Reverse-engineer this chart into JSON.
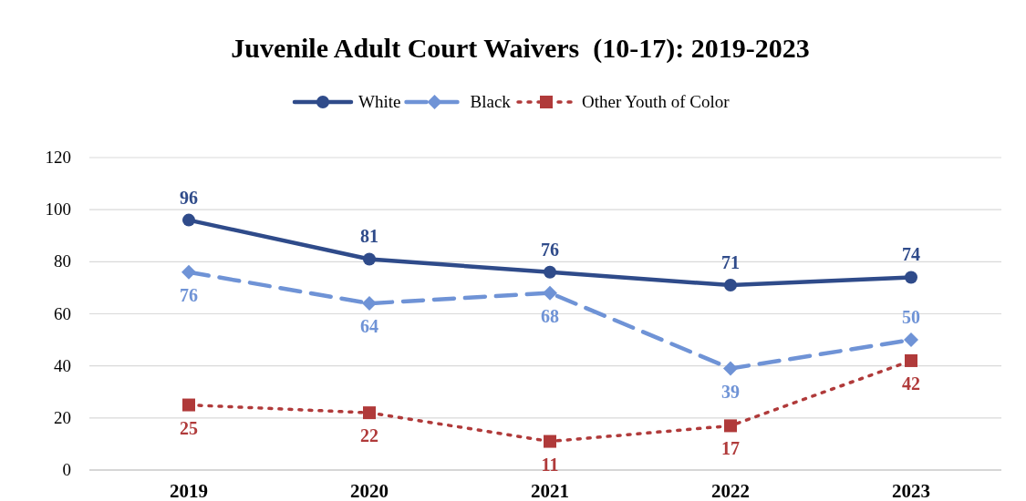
{
  "chart_data": {
    "type": "line",
    "title": "Juvenile Adult Court Waivers  (10-17): 2019-2023",
    "categories": [
      "2019",
      "2020",
      "2021",
      "2022",
      "2023"
    ],
    "ylim": [
      0,
      120
    ],
    "yticks": [
      0,
      20,
      40,
      60,
      80,
      100,
      120
    ],
    "grid": "y",
    "legend": "top",
    "data_labels": true,
    "series": [
      {
        "name": "White",
        "color": "#2f4b8a",
        "values": [
          96,
          81,
          76,
          71,
          74
        ],
        "marker": "circle",
        "line_style": "solid"
      },
      {
        "name": "Black",
        "color": "#6f93d6",
        "values": [
          76,
          64,
          68,
          39,
          50
        ],
        "marker": "diamond",
        "line_style": "dashed"
      },
      {
        "name": "Other Youth of Color",
        "color": "#b03a3a",
        "values": [
          25,
          22,
          11,
          17,
          42
        ],
        "marker": "square",
        "line_style": "dotted"
      }
    ]
  }
}
